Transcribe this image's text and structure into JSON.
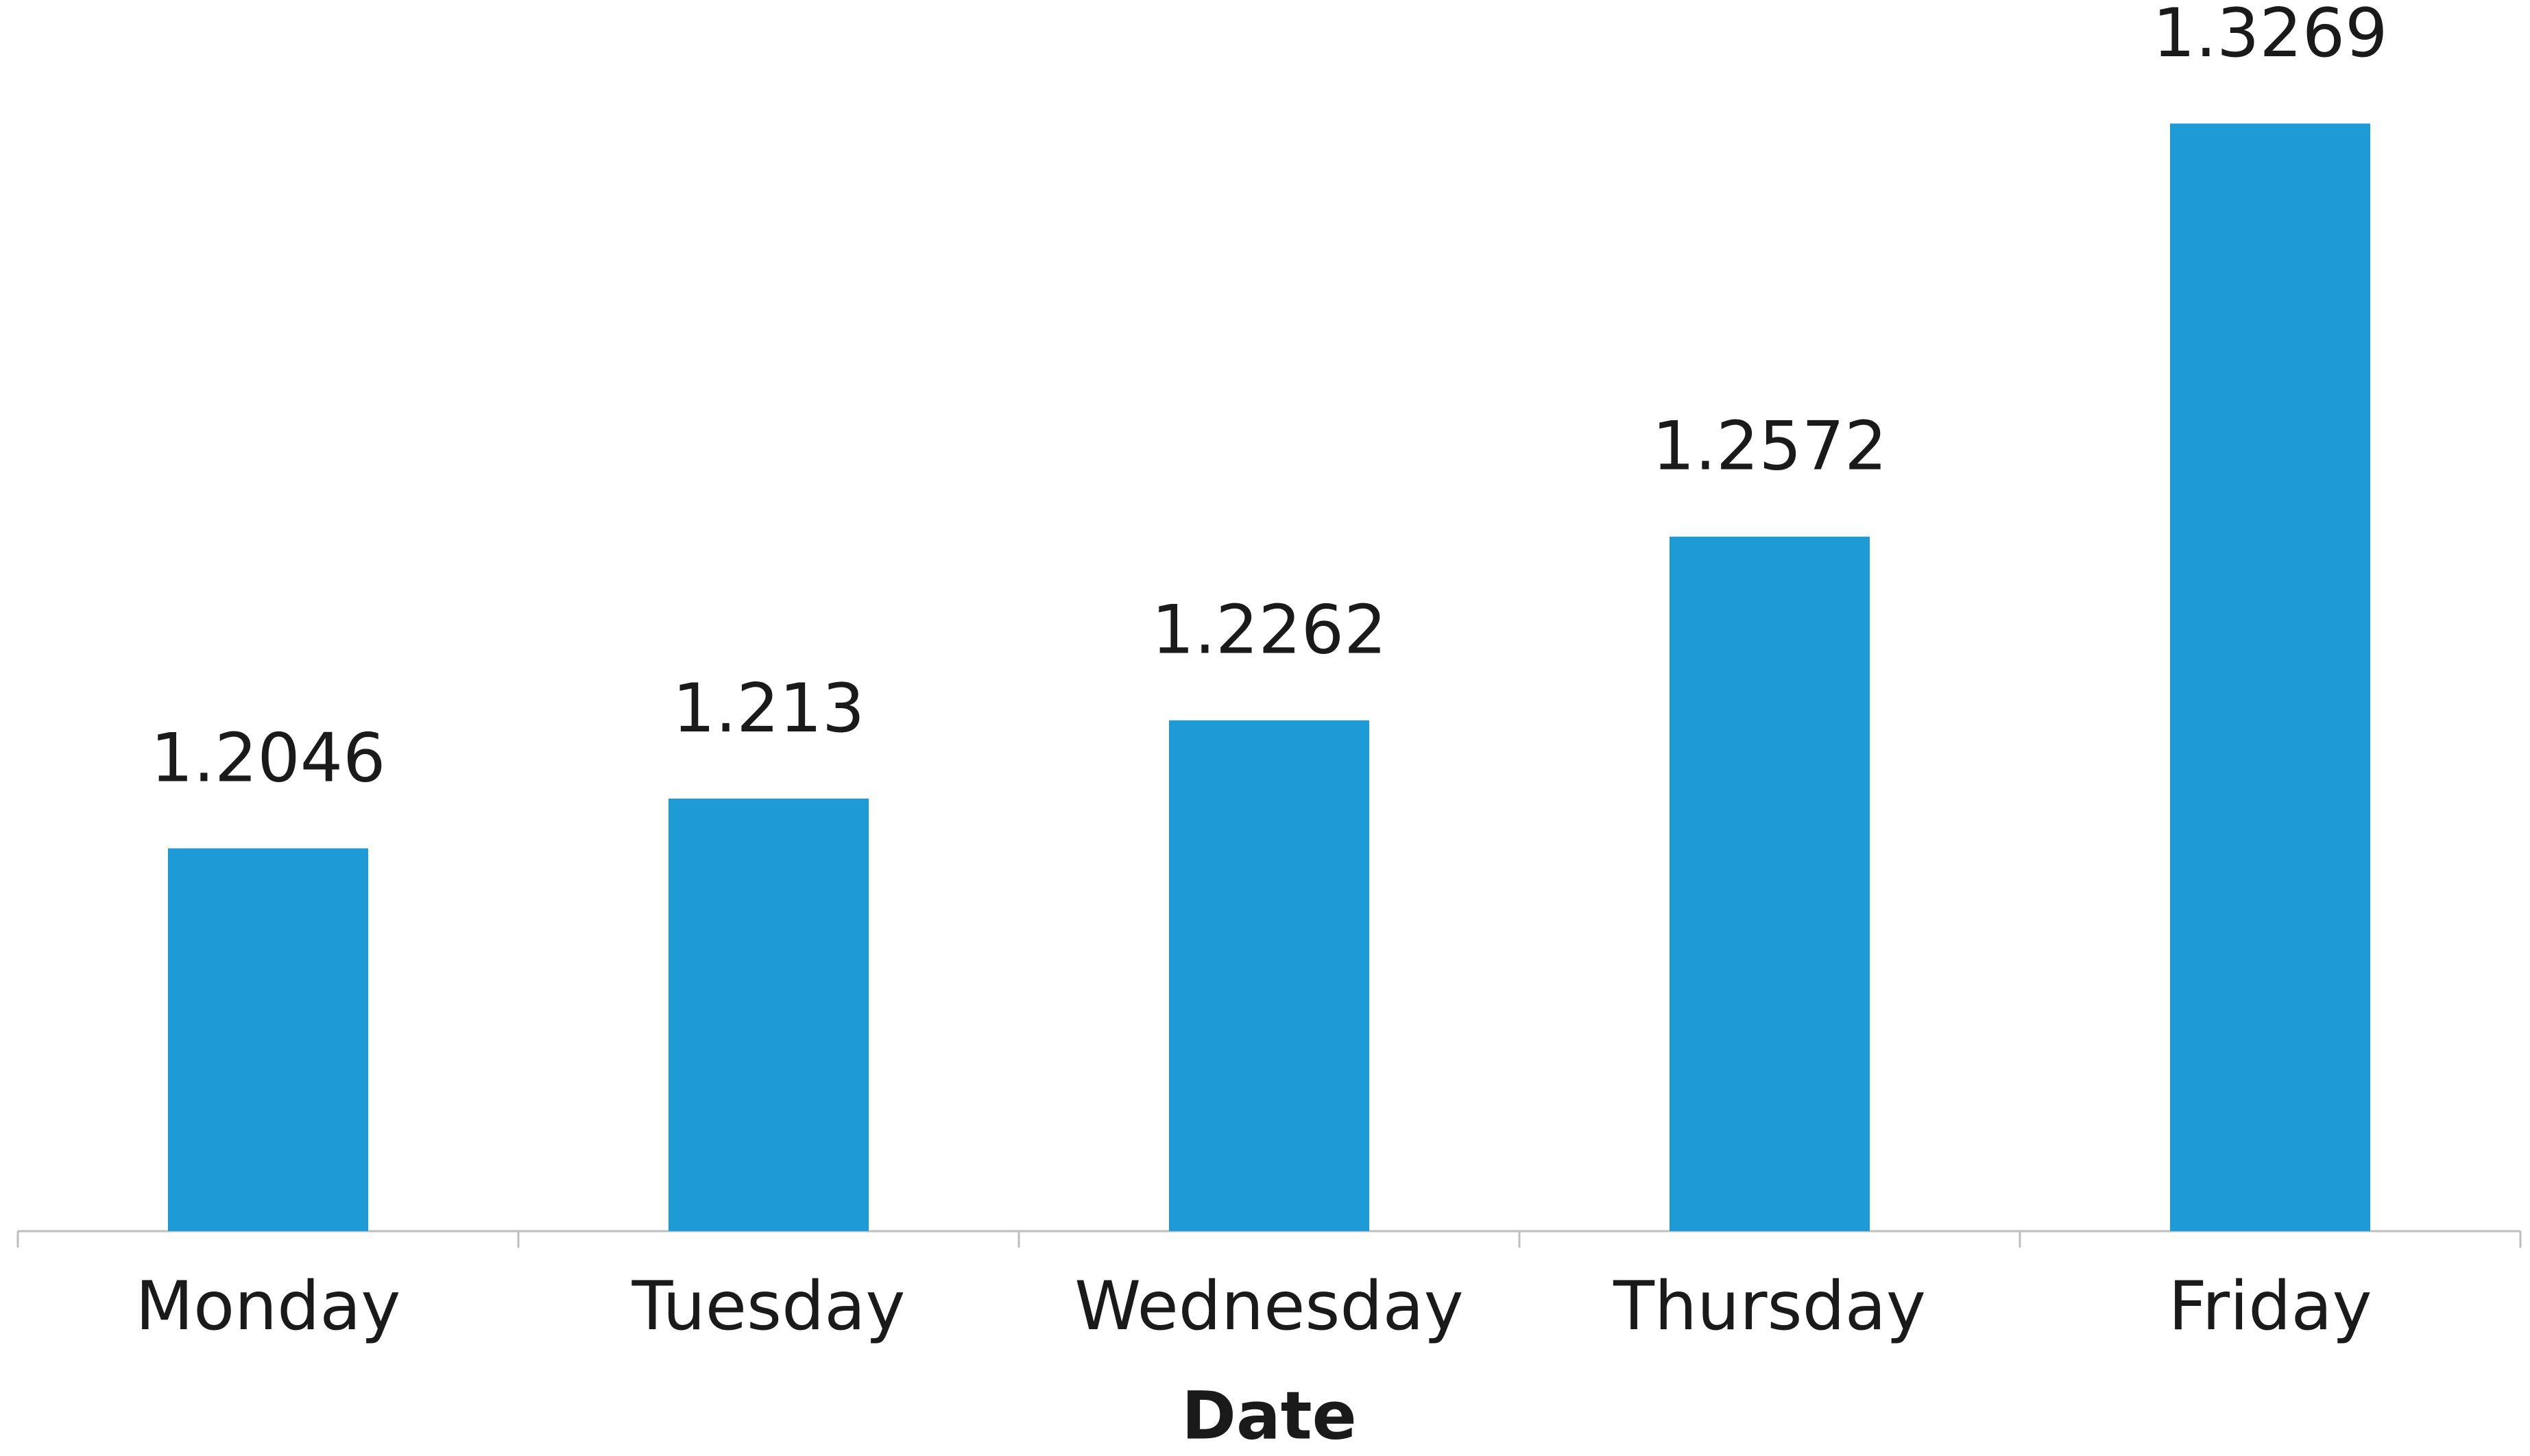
{
  "chart_data": {
    "type": "bar",
    "x_label": "Date",
    "categories": [
      "Monday",
      "Tuesday",
      "Wednesday",
      "Thursday",
      "Friday"
    ],
    "values": [
      1.2046,
      1.213,
      1.2262,
      1.2572,
      1.3269
    ],
    "color": "#1e9bd7",
    "ylim": [
      1.14,
      1.35
    ]
  }
}
